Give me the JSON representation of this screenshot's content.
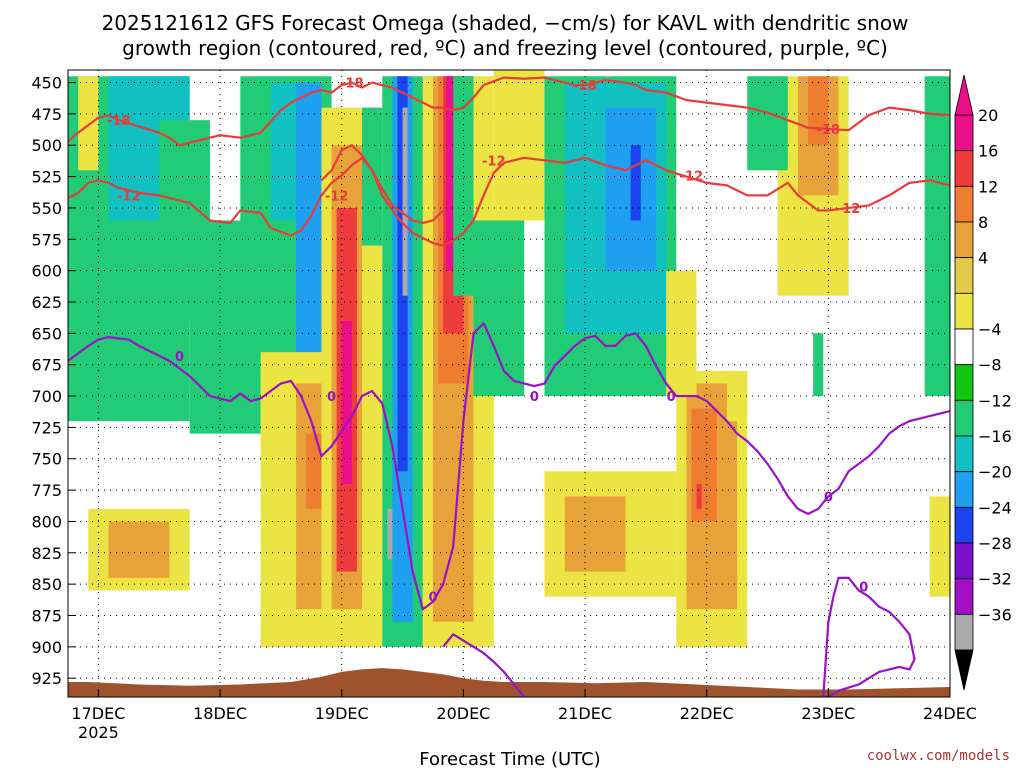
{
  "chart_data": {
    "type": "heatmap",
    "title_line1": "2025121612 GFS Forecast Omega (shaded, −cm/s) for KAVL with dendritic snow",
    "title_line2": "growth region (contoured, red, ºC) and freezing level (contoured, purple, ºC)",
    "xlabel": "Forecast Time (UTC)",
    "ylabel": "",
    "credit": "coolwx.com/models",
    "year_label": "2025",
    "x_ticks": [
      {
        "label": "17DEC",
        "t": 12
      },
      {
        "label": "18DEC",
        "t": 36
      },
      {
        "label": "19DEC",
        "t": 60
      },
      {
        "label": "20DEC",
        "t": 84
      },
      {
        "label": "21DEC",
        "t": 108
      },
      {
        "label": "22DEC",
        "t": 132
      },
      {
        "label": "23DEC",
        "t": 156
      },
      {
        "label": "24DEC",
        "t": 180
      }
    ],
    "xlim_hours": [
      6,
      180
    ],
    "y_levels": [
      "450",
      "475",
      "500",
      "525",
      "550",
      "575",
      "600",
      "625",
      "650",
      "675",
      "700",
      "725",
      "750",
      "775",
      "800",
      "825",
      "850",
      "875",
      "900",
      "925"
    ],
    "ylim_hpa": [
      440,
      940
    ],
    "colorbar": {
      "labels": [
        "20",
        "16",
        "12",
        "8",
        "4",
        "−4",
        "−8",
        "−12",
        "−16",
        "−20",
        "−24",
        "−28",
        "−32",
        "−36"
      ],
      "colors": [
        "#ec0f8a",
        "#ee3b3b",
        "#ee7d2f",
        "#e8a23a",
        "#e3c94a",
        "#ece443",
        "#ffffff",
        "#11c511",
        "#22cc77",
        "#11c1c1",
        "#1f9ff0",
        "#1c44ee",
        "#7a10cc",
        "#a40ec4",
        "#aaaaaa"
      ]
    },
    "omega_cells": [
      {
        "t0": 6,
        "t1": 30,
        "p0": 445,
        "p1": 720,
        "v": -8
      },
      {
        "t0": 8,
        "t1": 12,
        "p0": 445,
        "p1": 520,
        "v": 6
      },
      {
        "t0": 14,
        "t1": 30,
        "p0": 445,
        "p1": 560,
        "v": -12
      },
      {
        "t0": 24,
        "t1": 34,
        "p0": 480,
        "p1": 640,
        "v": -10
      },
      {
        "t0": 30,
        "t1": 44,
        "p0": 560,
        "p1": 730,
        "v": -8
      },
      {
        "t0": 10,
        "t1": 30,
        "p0": 790,
        "p1": 855,
        "v": 6
      },
      {
        "t0": 14,
        "t1": 26,
        "p0": 800,
        "p1": 845,
        "v": 10
      },
      {
        "t0": 40,
        "t1": 58,
        "p0": 445,
        "p1": 680,
        "v": -8
      },
      {
        "t0": 46,
        "t1": 54,
        "p0": 450,
        "p1": 560,
        "v": -12
      },
      {
        "t0": 51,
        "t1": 56,
        "p0": 450,
        "p1": 700,
        "v": -16
      },
      {
        "t0": 44,
        "t1": 62,
        "p0": 665,
        "p1": 900,
        "v": 6
      },
      {
        "t0": 51,
        "t1": 62,
        "p0": 690,
        "p1": 870,
        "v": 10
      },
      {
        "t0": 53,
        "t1": 58,
        "p0": 730,
        "p1": 790,
        "v": 14
      },
      {
        "t0": 56,
        "t1": 68,
        "p0": 470,
        "p1": 900,
        "v": 6
      },
      {
        "t0": 58,
        "t1": 64,
        "p0": 500,
        "p1": 870,
        "v": 10
      },
      {
        "t0": 59,
        "t1": 63,
        "p0": 550,
        "p1": 840,
        "v": 18
      },
      {
        "t0": 60,
        "t1": 62,
        "p0": 640,
        "p1": 770,
        "v": 22
      },
      {
        "t0": 64,
        "t1": 68,
        "p0": 470,
        "p1": 580,
        "v": -10
      },
      {
        "t0": 68,
        "t1": 76,
        "p0": 445,
        "p1": 900,
        "v": -10
      },
      {
        "t0": 70,
        "t1": 74,
        "p0": 445,
        "p1": 880,
        "v": -16
      },
      {
        "t0": 71,
        "t1": 73,
        "p0": 445,
        "p1": 760,
        "v": -22
      },
      {
        "t0": 72,
        "t1": 73,
        "p0": 470,
        "p1": 620,
        "v": -34
      },
      {
        "t0": 69,
        "t1": 70,
        "p0": 790,
        "p1": 830,
        "v": -34
      },
      {
        "t0": 76,
        "t1": 78,
        "p0": 445,
        "p1": 620,
        "v": -16
      },
      {
        "t0": 76,
        "t1": 90,
        "p0": 445,
        "p1": 900,
        "v": 6
      },
      {
        "t0": 78,
        "t1": 86,
        "p0": 445,
        "p1": 880,
        "v": 10
      },
      {
        "t0": 79,
        "t1": 85,
        "p0": 445,
        "p1": 690,
        "v": 14
      },
      {
        "t0": 80,
        "t1": 84,
        "p0": 445,
        "p1": 650,
        "v": 18
      },
      {
        "t0": 80.5,
        "t1": 83.5,
        "p0": 445,
        "p1": 600,
        "v": 22
      },
      {
        "t0": 82,
        "t1": 86,
        "p0": 445,
        "p1": 620,
        "v": -10
      },
      {
        "t0": 86,
        "t1": 96,
        "p0": 560,
        "p1": 700,
        "v": -8
      },
      {
        "t0": 90,
        "t1": 100,
        "p0": 440,
        "p1": 560,
        "v": 6
      },
      {
        "t0": 100,
        "t1": 126,
        "p0": 445,
        "p1": 700,
        "v": -8
      },
      {
        "t0": 104,
        "t1": 124,
        "p0": 450,
        "p1": 650,
        "v": -12
      },
      {
        "t0": 112,
        "t1": 122,
        "p0": 470,
        "p1": 600,
        "v": -16
      },
      {
        "t0": 117,
        "t1": 119,
        "p0": 500,
        "p1": 560,
        "v": -20
      },
      {
        "t0": 100,
        "t1": 126,
        "p0": 760,
        "p1": 860,
        "v": 6
      },
      {
        "t0": 104,
        "t1": 116,
        "p0": 780,
        "p1": 840,
        "v": 10
      },
      {
        "t0": 126,
        "t1": 140,
        "p0": 680,
        "p1": 900,
        "v": 6
      },
      {
        "t0": 128,
        "t1": 138,
        "p0": 690,
        "p1": 870,
        "v": 10
      },
      {
        "t0": 129,
        "t1": 134,
        "p0": 710,
        "p1": 800,
        "v": 14
      },
      {
        "t0": 130,
        "t1": 131,
        "p0": 770,
        "p1": 790,
        "v": 18
      },
      {
        "t0": 124,
        "t1": 130,
        "p0": 600,
        "p1": 700,
        "v": 6
      },
      {
        "t0": 136,
        "t1": 140,
        "p0": 680,
        "p1": 720,
        "v": 6
      },
      {
        "t0": 146,
        "t1": 160,
        "p0": 445,
        "p1": 620,
        "v": 6
      },
      {
        "t0": 150,
        "t1": 158,
        "p0": 445,
        "p1": 540,
        "v": 10
      },
      {
        "t0": 152,
        "t1": 156,
        "p0": 445,
        "p1": 500,
        "v": 14
      },
      {
        "t0": 140,
        "t1": 148,
        "p0": 445,
        "p1": 520,
        "v": -8
      },
      {
        "t0": 153,
        "t1": 155,
        "p0": 650,
        "p1": 700,
        "v": -8
      },
      {
        "t0": 175,
        "t1": 180,
        "p0": 445,
        "p1": 700,
        "v": -8
      },
      {
        "t0": 176,
        "t1": 180,
        "p0": 780,
        "p1": 860,
        "v": 6
      }
    ],
    "series": [
      {
        "name": "-18",
        "color": "#e83b3b",
        "x": [
          6,
          8,
          10,
          12,
          14,
          16,
          20,
          24,
          26,
          28,
          30,
          36,
          40,
          44,
          48,
          50,
          52,
          54,
          56,
          58,
          60,
          62,
          64,
          66,
          68,
          70,
          72,
          74,
          76,
          78,
          80,
          82,
          84,
          86,
          88,
          92,
          96,
          100,
          104,
          106,
          108,
          112,
          116,
          118,
          120,
          124,
          128,
          132,
          136,
          140,
          144,
          148,
          152,
          156,
          160,
          164,
          168,
          172,
          176,
          180
        ],
        "y": [
          497,
          490,
          484,
          478,
          476,
          480,
          485,
          490,
          494,
          500,
          498,
          492,
          494,
          490,
          472,
          466,
          462,
          458,
          456,
          458,
          452,
          450,
          454,
          450,
          452,
          454,
          458,
          462,
          466,
          470,
          470,
          472,
          470,
          462,
          452,
          446,
          447,
          446,
          450,
          452,
          452,
          448,
          450,
          452,
          456,
          458,
          464,
          466,
          468,
          470,
          474,
          480,
          486,
          487,
          488,
          476,
          470,
          472,
          475,
          476
        ],
        "labels": [
          {
            "text": "-18",
            "x": 16,
            "y": 480
          },
          {
            "text": "-18",
            "x": 62,
            "y": 450
          },
          {
            "text": "-18",
            "x": 108,
            "y": 452
          },
          {
            "text": "-18",
            "x": 156,
            "y": 487
          }
        ]
      },
      {
        "name": "-12",
        "color": "#e83b3b",
        "x": [
          6,
          8,
          10,
          12,
          14,
          16,
          20,
          24,
          28,
          30,
          34,
          38,
          40,
          44,
          46,
          50,
          52,
          54,
          56,
          58,
          60,
          62,
          64,
          66,
          68,
          70,
          72,
          74,
          76,
          78,
          80,
          82,
          84,
          86,
          88,
          90,
          92,
          96,
          100,
          104,
          108,
          112,
          116,
          120,
          124,
          128,
          132,
          136,
          140,
          144,
          148,
          150,
          152,
          154,
          156,
          160,
          164,
          168,
          172,
          176,
          180
        ],
        "y": [
          542,
          538,
          530,
          528,
          530,
          534,
          538,
          540,
          544,
          546,
          560,
          562,
          552,
          554,
          566,
          572,
          568,
          556,
          540,
          530,
          524,
          516,
          510,
          520,
          540,
          552,
          562,
          570,
          574,
          578,
          580,
          576,
          570,
          560,
          540,
          522,
          514,
          510,
          512,
          514,
          510,
          516,
          520,
          512,
          520,
          525,
          530,
          532,
          540,
          540,
          530,
          540,
          546,
          552,
          552,
          550,
          548,
          540,
          530,
          528,
          532
        ],
        "labels": [
          {
            "text": "-12",
            "x": 18,
            "y": 540
          },
          {
            "text": "-12",
            "x": 59,
            "y": 540
          },
          {
            "text": "-12",
            "x": 90,
            "y": 512
          },
          {
            "text": "-12",
            "x": 129,
            "y": 524
          },
          {
            "text": "-12",
            "x": 160,
            "y": 550
          }
        ]
      },
      {
        "name": "-12 band",
        "color": "#e83b3b",
        "x": [
          56,
          58,
          60,
          62,
          64,
          66,
          68,
          70,
          72,
          74,
          76,
          78,
          80
        ],
        "y": [
          528,
          520,
          504,
          500,
          508,
          520,
          535,
          548,
          554,
          560,
          562,
          560,
          552
        ],
        "labels": []
      },
      {
        "name": "0",
        "color": "#9a12c8",
        "x": [
          6,
          8,
          10,
          12,
          14,
          16,
          18,
          20,
          22,
          24,
          26,
          28,
          30,
          32,
          34,
          36,
          38,
          40,
          42,
          44,
          46,
          48,
          50,
          52,
          54,
          56,
          58,
          60,
          62,
          64,
          66,
          68,
          70,
          72,
          74,
          76,
          78,
          80,
          82,
          84,
          86,
          88,
          90,
          92,
          94,
          96,
          98,
          100,
          102,
          104,
          106,
          108,
          110,
          112,
          114,
          116,
          118,
          120,
          122,
          124,
          126,
          128,
          130,
          132,
          134,
          136,
          138,
          140,
          142,
          144,
          146,
          148,
          150,
          152,
          154,
          156,
          158,
          160,
          162,
          164,
          166,
          168,
          170,
          172,
          174,
          176,
          178,
          180
        ],
        "y": [
          672,
          666,
          660,
          655,
          653,
          654,
          655,
          660,
          664,
          668,
          672,
          678,
          684,
          692,
          700,
          702,
          704,
          698,
          704,
          702,
          696,
          690,
          688,
          700,
          720,
          748,
          740,
          728,
          716,
          700,
          696,
          706,
          740,
          790,
          840,
          870,
          864,
          850,
          820,
          720,
          650,
          642,
          660,
          680,
          688,
          690,
          692,
          690,
          676,
          668,
          660,
          654,
          652,
          660,
          660,
          652,
          650,
          660,
          676,
          690,
          700,
          700,
          700,
          704,
          712,
          720,
          730,
          736,
          744,
          754,
          766,
          780,
          790,
          794,
          790,
          780,
          774,
          760,
          754,
          748,
          740,
          730,
          724,
          720,
          718,
          716,
          714,
          712
        ],
        "labels": [
          {
            "text": "0",
            "x": 28,
            "y": 668
          },
          {
            "text": "0",
            "x": 58,
            "y": 700
          },
          {
            "text": "0",
            "x": 78,
            "y": 860
          },
          {
            "text": "0",
            "x": 98,
            "y": 700
          },
          {
            "text": "0",
            "x": 125,
            "y": 700
          },
          {
            "text": "0",
            "x": 156,
            "y": 780
          }
        ]
      },
      {
        "name": "0 lower",
        "color": "#9a12c8",
        "x": [
          80,
          82,
          84,
          86,
          88,
          90,
          92,
          94,
          96
        ],
        "y": [
          900,
          890,
          895,
          900,
          905,
          912,
          920,
          930,
          940
        ],
        "labels": []
      },
      {
        "name": "0 loop",
        "color": "#9a12c8",
        "x": [
          155,
          156,
          157,
          158,
          160,
          162,
          164,
          166,
          168,
          170,
          172,
          173,
          172,
          170,
          166,
          162,
          158,
          156,
          155
        ],
        "y": [
          940,
          880,
          860,
          845,
          845,
          855,
          860,
          868,
          872,
          880,
          890,
          910,
          918,
          916,
          920,
          930,
          935,
          940,
          940
        ],
        "labels": [
          {
            "text": "0",
            "x": 163,
            "y": 852
          }
        ]
      }
    ],
    "terrain": {
      "color": "#a0522d",
      "x": [
        6,
        10,
        20,
        30,
        40,
        50,
        56,
        60,
        64,
        68,
        72,
        76,
        80,
        84,
        88,
        92,
        100,
        110,
        120,
        130,
        140,
        150,
        160,
        170,
        180
      ],
      "p": [
        928,
        928,
        930,
        931,
        930,
        928,
        924,
        920,
        918,
        917,
        918,
        920,
        922,
        925,
        927,
        928,
        928,
        929,
        928,
        930,
        932,
        934,
        934,
        933,
        932
      ]
    },
    "grid": "dotted"
  }
}
